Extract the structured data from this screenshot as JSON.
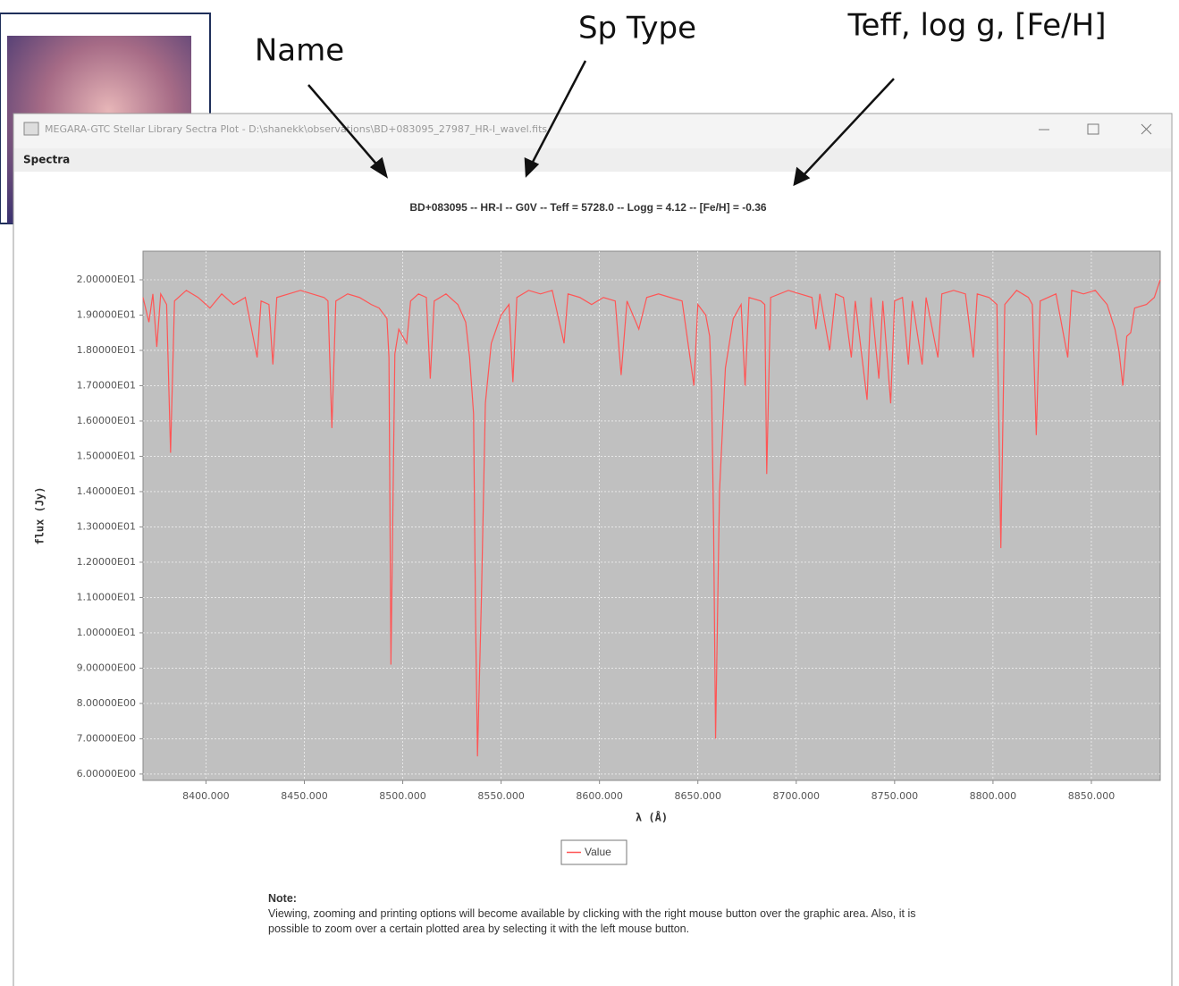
{
  "annotations": [
    "Name",
    "Sp Type",
    "Teff, log g, [Fe/H]"
  ],
  "window": {
    "title": "MEGARA-GTC Stellar Library Sectra Plot - D:\\shanekk\\observations\\BD+083095_27987_HR-I_wavel.fits",
    "menu": "Spectra"
  },
  "chart_data": {
    "type": "line",
    "title": "BD+083095 -- HR-I -- G0V -- Teff = 5728.0 -- Logg = 4.12 -- [Fe/H] = -0.36",
    "x_label": "λ (Å)",
    "y_label": "flux (Jy)",
    "xlim": [
      8368,
      8885
    ],
    "ylim": [
      5.82,
      20.81
    ],
    "xticks": [
      {
        "value": 8400,
        "label": "8400.000"
      },
      {
        "value": 8450,
        "label": "8450.000"
      },
      {
        "value": 8500,
        "label": "8500.000"
      },
      {
        "value": 8550,
        "label": "8550.000"
      },
      {
        "value": 8600,
        "label": "8600.000"
      },
      {
        "value": 8650,
        "label": "8650.000"
      },
      {
        "value": 8700,
        "label": "8700.000"
      },
      {
        "value": 8750,
        "label": "8750.000"
      },
      {
        "value": 8800,
        "label": "8800.000"
      },
      {
        "value": 8850,
        "label": "8850.000"
      }
    ],
    "yticks": [
      {
        "value": 6,
        "label": "6.00000E00"
      },
      {
        "value": 7,
        "label": "7.00000E00"
      },
      {
        "value": 8,
        "label": "8.00000E00"
      },
      {
        "value": 9,
        "label": "9.00000E00"
      },
      {
        "value": 10,
        "label": "1.00000E01"
      },
      {
        "value": 11,
        "label": "1.10000E01"
      },
      {
        "value": 12,
        "label": "1.20000E01"
      },
      {
        "value": 13,
        "label": "1.30000E01"
      },
      {
        "value": 14,
        "label": "1.40000E01"
      },
      {
        "value": 15,
        "label": "1.50000E01"
      },
      {
        "value": 16,
        "label": "1.60000E01"
      },
      {
        "value": 17,
        "label": "1.70000E01"
      },
      {
        "value": 18,
        "label": "1.80000E01"
      },
      {
        "value": 19,
        "label": "1.90000E01"
      },
      {
        "value": 20,
        "label": "2.00000E01"
      }
    ],
    "grid": true,
    "x": [
      8368,
      8371,
      8373,
      8375,
      8377,
      8380,
      8382,
      8384,
      8390,
      8396,
      8402,
      8408,
      8414,
      8420,
      8426,
      8428,
      8432,
      8434,
      8436,
      8442,
      8448,
      8454,
      8460,
      8462,
      8464,
      8466,
      8472,
      8478,
      8484,
      8488,
      8492,
      8493,
      8494,
      8496,
      8498,
      8502,
      8504,
      8508,
      8512,
      8514,
      8516,
      8522,
      8528,
      8532,
      8534,
      8536,
      8537,
      8538,
      8540,
      8542,
      8545,
      8550,
      8554,
      8556,
      8558,
      8564,
      8570,
      8576,
      8582,
      8584,
      8590,
      8596,
      8602,
      8608,
      8611,
      8614,
      8620,
      8624,
      8630,
      8636,
      8642,
      8648,
      8650,
      8654,
      8656,
      8657,
      8658,
      8659,
      8661,
      8664,
      8668,
      8672,
      8674,
      8676,
      8682,
      8684,
      8685,
      8687,
      8696,
      8702,
      8708,
      8710,
      8712,
      8717,
      8720,
      8724,
      8728,
      8730,
      8736,
      8738,
      8742,
      8744,
      8748,
      8750,
      8754,
      8757,
      8759,
      8764,
      8766,
      8772,
      8774,
      8780,
      8786,
      8790,
      8792,
      8798,
      8802,
      8804,
      8806,
      8812,
      8818,
      8820,
      8822,
      8824,
      8832,
      8838,
      8840,
      8846,
      8852,
      8858,
      8862,
      8864,
      8866,
      8868,
      8870,
      8872,
      8878,
      8882,
      8885
    ],
    "series": [
      {
        "name": "Value",
        "color": "#ff5555",
        "values": [
          19.5,
          18.8,
          19.6,
          18.1,
          19.6,
          19.3,
          15.1,
          19.4,
          19.7,
          19.5,
          19.2,
          19.6,
          19.3,
          19.5,
          17.8,
          19.4,
          19.3,
          17.6,
          19.5,
          19.6,
          19.7,
          19.6,
          19.5,
          19.4,
          15.8,
          19.4,
          19.6,
          19.5,
          19.3,
          19.2,
          18.9,
          17.8,
          9.1,
          17.9,
          18.6,
          18.2,
          19.4,
          19.6,
          19.5,
          17.2,
          19.4,
          19.6,
          19.3,
          18.8,
          17.8,
          16.2,
          10.5,
          6.5,
          11.0,
          16.5,
          18.2,
          19.0,
          19.3,
          17.1,
          19.5,
          19.7,
          19.6,
          19.7,
          18.2,
          19.6,
          19.5,
          19.3,
          19.5,
          19.4,
          17.3,
          19.4,
          18.6,
          19.5,
          19.6,
          19.5,
          19.4,
          17.0,
          19.3,
          19.0,
          18.4,
          16.8,
          13.0,
          7.0,
          14.0,
          17.5,
          18.9,
          19.3,
          17.0,
          19.5,
          19.4,
          19.3,
          14.5,
          19.5,
          19.7,
          19.6,
          19.5,
          18.6,
          19.6,
          18.0,
          19.6,
          19.5,
          17.8,
          19.4,
          16.6,
          19.5,
          17.2,
          19.4,
          16.5,
          19.4,
          19.5,
          17.6,
          19.4,
          17.6,
          19.5,
          17.8,
          19.6,
          19.7,
          19.6,
          17.8,
          19.6,
          19.5,
          19.3,
          12.4,
          19.3,
          19.7,
          19.5,
          19.3,
          15.6,
          19.4,
          19.6,
          17.8,
          19.7,
          19.6,
          19.7,
          19.3,
          18.6,
          18.0,
          17.0,
          18.4,
          18.5,
          19.2,
          19.3,
          19.5,
          20.0
        ]
      }
    ]
  },
  "note": {
    "title": "Note:",
    "text": "Viewing, zooming and printing options will become available by clicking with the right mouse button over the graphic area. Also, it is possible to zoom over a certain plotted area by selecting it with the left mouse button."
  }
}
